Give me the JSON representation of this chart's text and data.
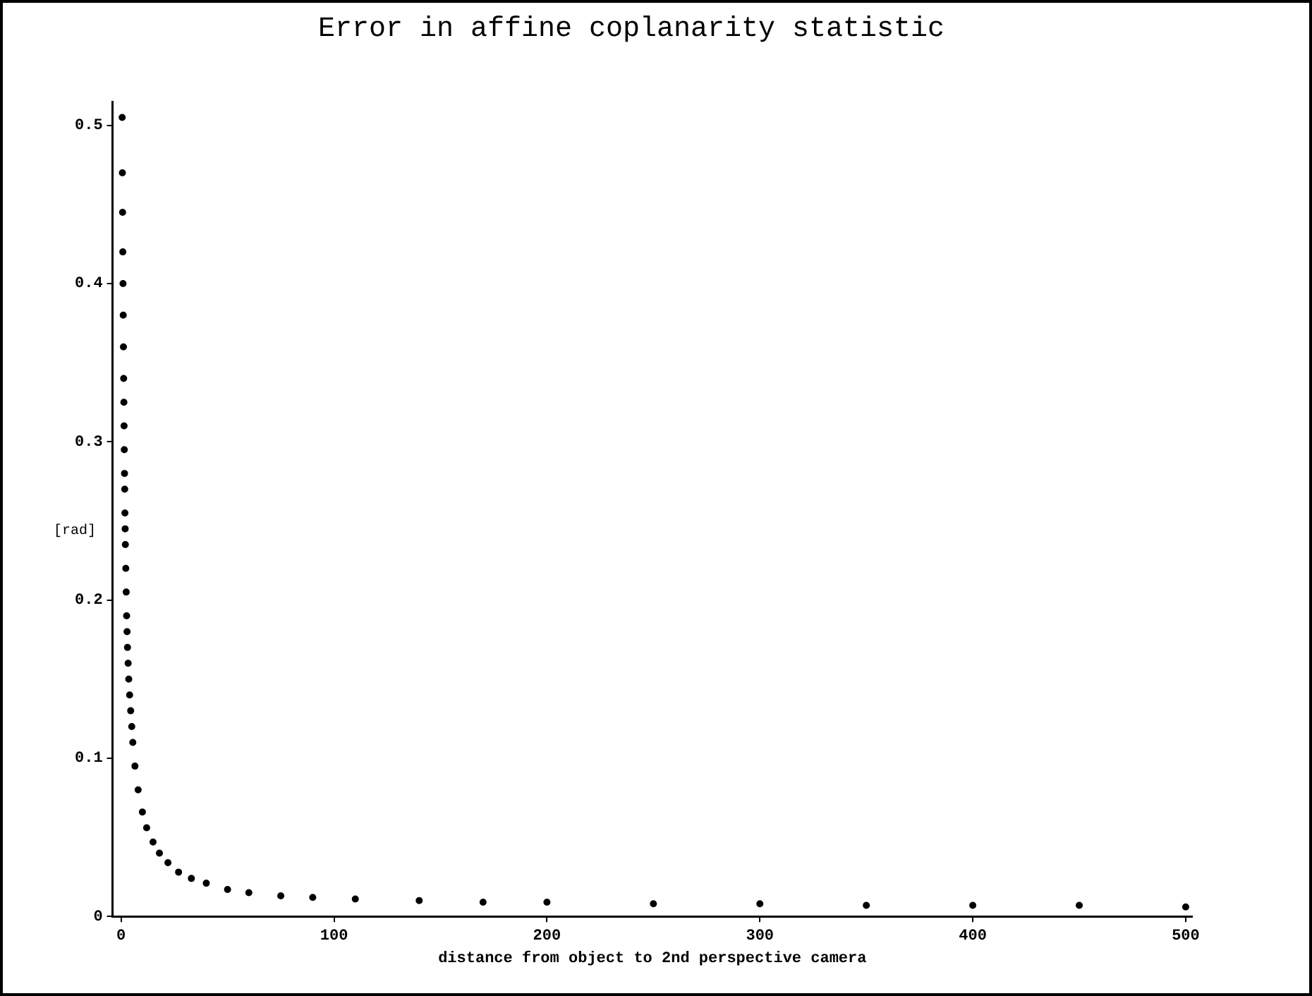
{
  "chart_data": {
    "type": "scatter",
    "title": "Error in affine coplanarity statistic",
    "xlabel": "distance from object to 2nd perspective camera",
    "ylabel": "[rad]",
    "x": [
      0.5,
      0.6,
      0.7,
      0.8,
      0.9,
      1,
      1.1,
      1.2,
      1.3,
      1.4,
      1.5,
      1.6,
      1.7,
      1.8,
      1.9,
      2,
      2.2,
      2.4,
      2.6,
      2.8,
      3,
      3.3,
      3.6,
      4,
      4.5,
      5,
      5.5,
      6.5,
      8,
      10,
      12,
      15,
      18,
      22,
      27,
      33,
      40,
      50,
      60,
      75,
      90,
      110,
      140,
      170,
      200,
      250,
      300,
      350,
      400,
      450,
      500
    ],
    "series": [
      {
        "color": "#000000",
        "values": [
          0.505,
          0.47,
          0.445,
          0.42,
          0.4,
          0.38,
          0.36,
          0.34,
          0.325,
          0.31,
          0.295,
          0.28,
          0.27,
          0.255,
          0.245,
          0.235,
          0.22,
          0.205,
          0.19,
          0.18,
          0.17,
          0.16,
          0.15,
          0.14,
          0.13,
          0.12,
          0.11,
          0.095,
          0.08,
          0.066,
          0.056,
          0.047,
          0.04,
          0.034,
          0.028,
          0.024,
          0.021,
          0.017,
          0.015,
          0.013,
          0.012,
          0.011,
          0.01,
          0.009,
          0.009,
          0.008,
          0.008,
          0.007,
          0.007,
          0.007,
          0.006
        ]
      }
    ],
    "xlim": [
      -4,
      503
    ],
    "xticks": [
      0,
      100,
      200,
      300,
      400,
      500
    ],
    "ylim": [
      0,
      0.515
    ],
    "yticks": [
      0,
      0.1,
      0.2,
      0.3,
      0.4,
      0.5
    ],
    "grid": false,
    "legend": false,
    "marker": "circle"
  }
}
